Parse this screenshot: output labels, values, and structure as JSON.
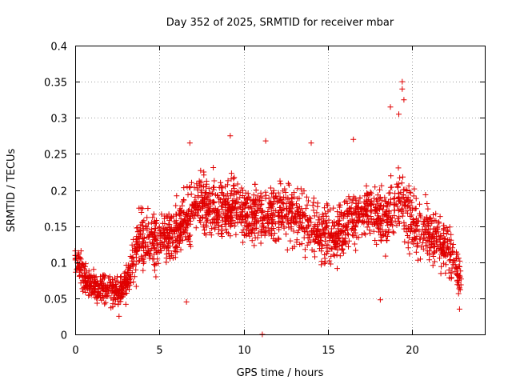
{
  "chart_data": {
    "type": "scatter",
    "title": "Day 352 of 2025, SRMTID for receiver mbar",
    "xlabel": "GPS time / hours",
    "ylabel": "SRMTID / TECUs",
    "xlim": [
      0,
      24.3
    ],
    "ylim": [
      0,
      0.4
    ],
    "x_ticks": [
      0,
      5,
      10,
      15,
      20
    ],
    "y_ticks": [
      0,
      0.05,
      0.1,
      0.15,
      0.2,
      0.25,
      0.3,
      0.35,
      0.4
    ],
    "x_tick_labels": [
      "0",
      "5",
      "10",
      "15",
      "20"
    ],
    "y_tick_labels": [
      "0",
      "0.05",
      "0.1",
      "0.15",
      "0.2",
      "0.25",
      "0.3",
      "0.35",
      "0.4"
    ],
    "grid": true,
    "marker": "plus",
    "color": "#e00000",
    "x_range_hours": [
      0,
      22.9
    ],
    "series": [
      {
        "name": "SRMTID",
        "trend": [
          {
            "x": 0.0,
            "y": 0.11
          },
          {
            "x": 0.5,
            "y": 0.08
          },
          {
            "x": 1.0,
            "y": 0.068
          },
          {
            "x": 2.0,
            "y": 0.062
          },
          {
            "x": 2.7,
            "y": 0.058
          },
          {
            "x": 3.2,
            "y": 0.08
          },
          {
            "x": 3.8,
            "y": 0.135
          },
          {
            "x": 4.5,
            "y": 0.125
          },
          {
            "x": 5.5,
            "y": 0.135
          },
          {
            "x": 6.5,
            "y": 0.155
          },
          {
            "x": 7.5,
            "y": 0.185
          },
          {
            "x": 8.5,
            "y": 0.17
          },
          {
            "x": 9.5,
            "y": 0.18
          },
          {
            "x": 10.5,
            "y": 0.16
          },
          {
            "x": 11.5,
            "y": 0.165
          },
          {
            "x": 12.5,
            "y": 0.17
          },
          {
            "x": 13.5,
            "y": 0.16
          },
          {
            "x": 14.5,
            "y": 0.14
          },
          {
            "x": 15.5,
            "y": 0.135
          },
          {
            "x": 16.5,
            "y": 0.165
          },
          {
            "x": 17.5,
            "y": 0.17
          },
          {
            "x": 18.5,
            "y": 0.16
          },
          {
            "x": 19.3,
            "y": 0.19
          },
          {
            "x": 20.0,
            "y": 0.15
          },
          {
            "x": 21.0,
            "y": 0.14
          },
          {
            "x": 22.0,
            "y": 0.125
          },
          {
            "x": 22.9,
            "y": 0.075
          }
        ],
        "notable_points": [
          {
            "x": 19.4,
            "y": 0.35
          },
          {
            "x": 19.4,
            "y": 0.34
          },
          {
            "x": 19.5,
            "y": 0.325
          },
          {
            "x": 18.7,
            "y": 0.315
          },
          {
            "x": 19.2,
            "y": 0.305
          },
          {
            "x": 6.8,
            "y": 0.265
          },
          {
            "x": 9.2,
            "y": 0.275
          },
          {
            "x": 11.3,
            "y": 0.268
          },
          {
            "x": 14.0,
            "y": 0.265
          },
          {
            "x": 16.5,
            "y": 0.27
          },
          {
            "x": 11.1,
            "y": 0.0
          },
          {
            "x": 2.6,
            "y": 0.025
          },
          {
            "x": 22.8,
            "y": 0.035
          },
          {
            "x": 18.1,
            "y": 0.048
          },
          {
            "x": 6.6,
            "y": 0.045
          }
        ]
      }
    ]
  }
}
